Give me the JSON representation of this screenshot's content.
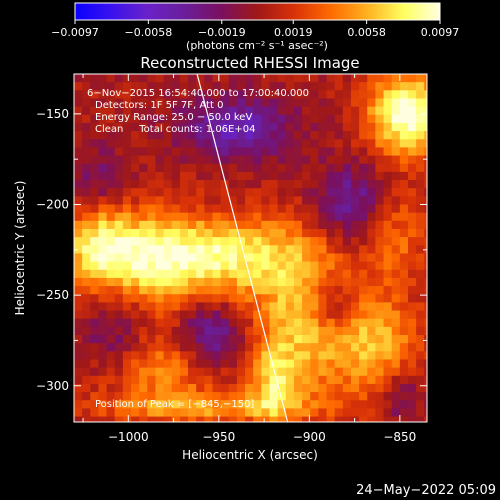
{
  "chart_data": {
    "type": "heatmap",
    "title": "Reconstructed RHESSI Image",
    "xlabel": "Heliocentric X (arcsec)",
    "ylabel": "Heliocentric Y (arcsec)",
    "xlim": [
      -1030,
      -835
    ],
    "ylim": [
      -320,
      -128
    ],
    "x_ticks": [
      -1000,
      -950,
      -900,
      -850
    ],
    "y_ticks": [
      -150,
      -200,
      -250,
      -300
    ],
    "x_tick_labels": [
      "−1000",
      "−950",
      "−900",
      "−850"
    ],
    "y_tick_labels": [
      "−150",
      "−200",
      "−250",
      "−300"
    ],
    "colorbar": {
      "range": [
        -0.0097,
        0.0097
      ],
      "ticks": [
        -0.0097,
        -0.0058,
        -0.0019,
        0.0019,
        0.0058,
        0.0097
      ],
      "tick_labels": [
        "−0.0097",
        "−0.0058",
        "−0.0019",
        "0.0019",
        "0.0058",
        "0.0097"
      ],
      "unit_label": "(photons cm⁻² s⁻¹ asec⁻²)",
      "colors": [
        "#0a00ff",
        "#3a12ee",
        "#6a22c8",
        "#6a1e9a",
        "#7a1060",
        "#a01818",
        "#d83208",
        "#ff6a00",
        "#ffb020",
        "#ffff60",
        "#ffffe0"
      ]
    },
    "annotations": [
      "6−Nov−2015 16:54:40.000 to 17:00:40.000",
      "Detectors: 1F 5F 7F, Att 0",
      "Energy Range: 25.0 − 50.0 keV",
      "Clean     Total counts: 1.06E+04"
    ],
    "peak_label": "Position of Peak = [−845,−150]",
    "peak": [
      -845,
      -150
    ],
    "limb_line": [
      [
        -962,
        -128
      ],
      [
        -912,
        -320
      ]
    ],
    "sources": [
      {
        "x": -845,
        "y": -150,
        "sx": 16,
        "sy": 16,
        "amp": 1.0
      },
      {
        "x": -958,
        "y": -228,
        "sx": 38,
        "sy": 15,
        "amp": 0.85
      },
      {
        "x": -1000,
        "y": -250,
        "sx": 20,
        "sy": 30,
        "amp": 0.6
      },
      {
        "x": -1018,
        "y": -222,
        "sx": 12,
        "sy": 14,
        "amp": 0.45
      },
      {
        "x": -905,
        "y": -268,
        "sx": 20,
        "sy": 32,
        "amp": 0.6
      },
      {
        "x": -862,
        "y": -278,
        "sx": 16,
        "sy": 20,
        "amp": 0.55
      },
      {
        "x": -978,
        "y": -290,
        "sx": 26,
        "sy": 14,
        "amp": 0.45
      },
      {
        "x": -960,
        "y": -312,
        "sx": 40,
        "sy": 6,
        "amp": 0.45
      },
      {
        "x": -852,
        "y": -218,
        "sx": 12,
        "sy": 18,
        "amp": 0.35
      },
      {
        "x": -920,
        "y": -300,
        "sx": 8,
        "sy": 14,
        "amp": 0.45
      },
      {
        "x": -1005,
        "y": -268,
        "sx": 16,
        "sy": 20,
        "amp": -0.75
      },
      {
        "x": -955,
        "y": -275,
        "sx": 14,
        "sy": 14,
        "amp": -0.6
      },
      {
        "x": -940,
        "y": -158,
        "sx": 22,
        "sy": 12,
        "amp": -0.55
      },
      {
        "x": -888,
        "y": -255,
        "sx": 8,
        "sy": 10,
        "amp": -0.4
      },
      {
        "x": -878,
        "y": -200,
        "sx": 14,
        "sy": 16,
        "amp": -0.45
      },
      {
        "x": -1015,
        "y": -185,
        "sx": 12,
        "sy": 12,
        "amp": -0.3
      },
      {
        "x": -850,
        "y": -305,
        "sx": 10,
        "sy": 12,
        "amp": -0.3
      }
    ]
  },
  "footer": {
    "timestamp": "24−May−2022 05:09"
  }
}
